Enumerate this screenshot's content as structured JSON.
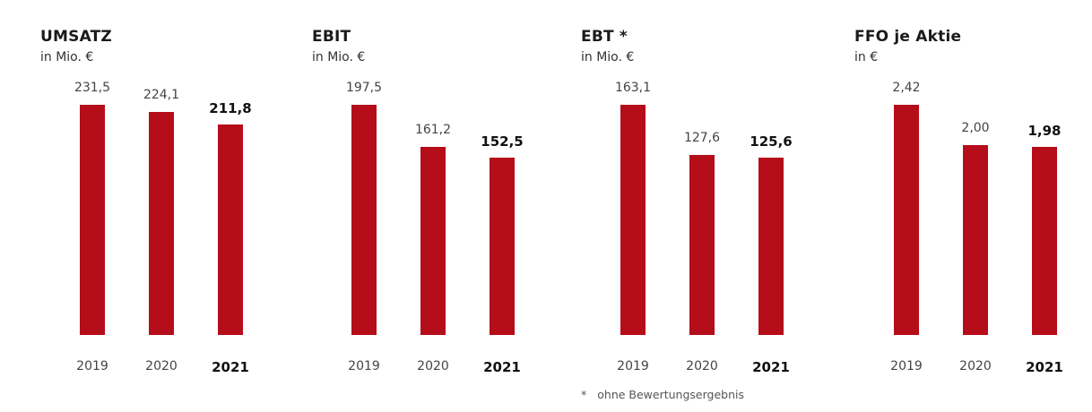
{
  "colors": {
    "bar": "#b50d1a",
    "text": "#1a1a1a",
    "muted": "#444444"
  },
  "chart_data": [
    {
      "type": "bar",
      "title": "UMSATZ",
      "unit": "in Mio. €",
      "categories": [
        "2019",
        "2020",
        "2021"
      ],
      "values": [
        231.5,
        224.1,
        211.8
      ],
      "value_labels": [
        "231,5",
        "224,1",
        "211,8"
      ],
      "highlight": "2021",
      "ylim": [
        0,
        231.5
      ]
    },
    {
      "type": "bar",
      "title": "EBIT",
      "unit": "in Mio. €",
      "categories": [
        "2019",
        "2020",
        "2021"
      ],
      "values": [
        197.5,
        161.2,
        152.5
      ],
      "value_labels": [
        "197,5",
        "161,2",
        "152,5"
      ],
      "highlight": "2021",
      "ylim": [
        0,
        197.5
      ]
    },
    {
      "type": "bar",
      "title": "EBT *",
      "unit": "in Mio. €",
      "categories": [
        "2019",
        "2020",
        "2021"
      ],
      "values": [
        163.1,
        127.6,
        125.6
      ],
      "value_labels": [
        "163,1",
        "127,6",
        "125,6"
      ],
      "highlight": "2021",
      "ylim": [
        0,
        163.1
      ]
    },
    {
      "type": "bar",
      "title": "FFO je Aktie",
      "unit": "in €",
      "categories": [
        "2019",
        "2020",
        "2021"
      ],
      "values": [
        2.42,
        2.0,
        1.98
      ],
      "value_labels": [
        "2,42",
        "2,00",
        "1,98"
      ],
      "highlight": "2021",
      "ylim": [
        0,
        2.42
      ]
    }
  ],
  "footnote": {
    "marker": "*",
    "text": "ohne Bewertungsergebnis"
  }
}
